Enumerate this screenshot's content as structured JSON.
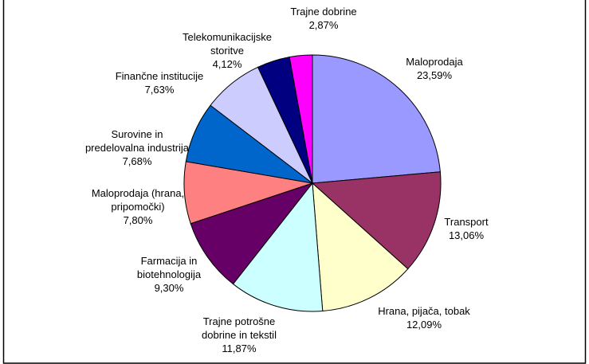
{
  "chart_data": {
    "type": "pie",
    "categories": [
      "Maloprodaja",
      "Transport",
      "Hrana, pijača, tobak",
      "Trajne potrošne dobrine in tekstil",
      "Farmacija in biotehnologija",
      "Maloprodaja (hrana, pripomočki)",
      "Surovine in predelovalna industrija",
      "Finančne institucije",
      "Telekomunikacijske storitve",
      "Trajne dobrine"
    ],
    "values": [
      23.59,
      13.06,
      12.09,
      11.87,
      9.3,
      7.8,
      7.68,
      7.63,
      4.12,
      2.87
    ],
    "value_labels": [
      "23,59%",
      "13,06%",
      "12,09%",
      "11,87%",
      "9,30%",
      "7,80%",
      "7,68%",
      "7,63%",
      "4,12%",
      "2,87%"
    ],
    "colors": [
      "#9999ff",
      "#993366",
      "#ffffcc",
      "#ccffff",
      "#660066",
      "#ff8080",
      "#0066cc",
      "#ccccff",
      "#000080",
      "#ff00ff"
    ]
  }
}
